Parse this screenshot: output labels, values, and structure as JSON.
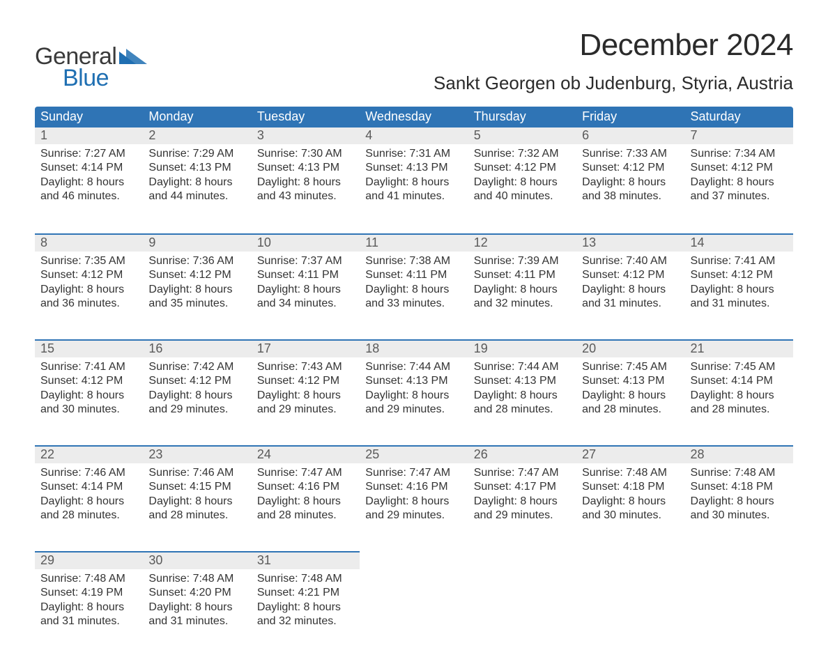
{
  "brand": {
    "part1": "General",
    "part2": "Blue",
    "accent_color": "#1f6fb2"
  },
  "title": "December 2024",
  "location": "Sankt Georgen ob Judenburg, Styria, Austria",
  "colors": {
    "header_bg": "#2f74b5",
    "header_text": "#ffffff",
    "rule": "#2f74b5",
    "daynum_bg": "#ececec",
    "daynum_text": "#5a5a5a",
    "body_text": "#333333",
    "page_bg": "#ffffff"
  },
  "fonts": {
    "title_size_pt": 33,
    "location_size_pt": 20,
    "header_size_pt": 14,
    "body_size_pt": 12
  },
  "weekday_labels": [
    "Sunday",
    "Monday",
    "Tuesday",
    "Wednesday",
    "Thursday",
    "Friday",
    "Saturday"
  ],
  "weeks": [
    [
      {
        "n": "1",
        "sunrise": "7:27 AM",
        "sunset": "4:14 PM",
        "daylight_l1": "Daylight: 8 hours",
        "daylight_l2": "and 46 minutes."
      },
      {
        "n": "2",
        "sunrise": "7:29 AM",
        "sunset": "4:13 PM",
        "daylight_l1": "Daylight: 8 hours",
        "daylight_l2": "and 44 minutes."
      },
      {
        "n": "3",
        "sunrise": "7:30 AM",
        "sunset": "4:13 PM",
        "daylight_l1": "Daylight: 8 hours",
        "daylight_l2": "and 43 minutes."
      },
      {
        "n": "4",
        "sunrise": "7:31 AM",
        "sunset": "4:13 PM",
        "daylight_l1": "Daylight: 8 hours",
        "daylight_l2": "and 41 minutes."
      },
      {
        "n": "5",
        "sunrise": "7:32 AM",
        "sunset": "4:12 PM",
        "daylight_l1": "Daylight: 8 hours",
        "daylight_l2": "and 40 minutes."
      },
      {
        "n": "6",
        "sunrise": "7:33 AM",
        "sunset": "4:12 PM",
        "daylight_l1": "Daylight: 8 hours",
        "daylight_l2": "and 38 minutes."
      },
      {
        "n": "7",
        "sunrise": "7:34 AM",
        "sunset": "4:12 PM",
        "daylight_l1": "Daylight: 8 hours",
        "daylight_l2": "and 37 minutes."
      }
    ],
    [
      {
        "n": "8",
        "sunrise": "7:35 AM",
        "sunset": "4:12 PM",
        "daylight_l1": "Daylight: 8 hours",
        "daylight_l2": "and 36 minutes."
      },
      {
        "n": "9",
        "sunrise": "7:36 AM",
        "sunset": "4:12 PM",
        "daylight_l1": "Daylight: 8 hours",
        "daylight_l2": "and 35 minutes."
      },
      {
        "n": "10",
        "sunrise": "7:37 AM",
        "sunset": "4:11 PM",
        "daylight_l1": "Daylight: 8 hours",
        "daylight_l2": "and 34 minutes."
      },
      {
        "n": "11",
        "sunrise": "7:38 AM",
        "sunset": "4:11 PM",
        "daylight_l1": "Daylight: 8 hours",
        "daylight_l2": "and 33 minutes."
      },
      {
        "n": "12",
        "sunrise": "7:39 AM",
        "sunset": "4:11 PM",
        "daylight_l1": "Daylight: 8 hours",
        "daylight_l2": "and 32 minutes."
      },
      {
        "n": "13",
        "sunrise": "7:40 AM",
        "sunset": "4:12 PM",
        "daylight_l1": "Daylight: 8 hours",
        "daylight_l2": "and 31 minutes."
      },
      {
        "n": "14",
        "sunrise": "7:41 AM",
        "sunset": "4:12 PM",
        "daylight_l1": "Daylight: 8 hours",
        "daylight_l2": "and 31 minutes."
      }
    ],
    [
      {
        "n": "15",
        "sunrise": "7:41 AM",
        "sunset": "4:12 PM",
        "daylight_l1": "Daylight: 8 hours",
        "daylight_l2": "and 30 minutes."
      },
      {
        "n": "16",
        "sunrise": "7:42 AM",
        "sunset": "4:12 PM",
        "daylight_l1": "Daylight: 8 hours",
        "daylight_l2": "and 29 minutes."
      },
      {
        "n": "17",
        "sunrise": "7:43 AM",
        "sunset": "4:12 PM",
        "daylight_l1": "Daylight: 8 hours",
        "daylight_l2": "and 29 minutes."
      },
      {
        "n": "18",
        "sunrise": "7:44 AM",
        "sunset": "4:13 PM",
        "daylight_l1": "Daylight: 8 hours",
        "daylight_l2": "and 29 minutes."
      },
      {
        "n": "19",
        "sunrise": "7:44 AM",
        "sunset": "4:13 PM",
        "daylight_l1": "Daylight: 8 hours",
        "daylight_l2": "and 28 minutes."
      },
      {
        "n": "20",
        "sunrise": "7:45 AM",
        "sunset": "4:13 PM",
        "daylight_l1": "Daylight: 8 hours",
        "daylight_l2": "and 28 minutes."
      },
      {
        "n": "21",
        "sunrise": "7:45 AM",
        "sunset": "4:14 PM",
        "daylight_l1": "Daylight: 8 hours",
        "daylight_l2": "and 28 minutes."
      }
    ],
    [
      {
        "n": "22",
        "sunrise": "7:46 AM",
        "sunset": "4:14 PM",
        "daylight_l1": "Daylight: 8 hours",
        "daylight_l2": "and 28 minutes."
      },
      {
        "n": "23",
        "sunrise": "7:46 AM",
        "sunset": "4:15 PM",
        "daylight_l1": "Daylight: 8 hours",
        "daylight_l2": "and 28 minutes."
      },
      {
        "n": "24",
        "sunrise": "7:47 AM",
        "sunset": "4:16 PM",
        "daylight_l1": "Daylight: 8 hours",
        "daylight_l2": "and 28 minutes."
      },
      {
        "n": "25",
        "sunrise": "7:47 AM",
        "sunset": "4:16 PM",
        "daylight_l1": "Daylight: 8 hours",
        "daylight_l2": "and 29 minutes."
      },
      {
        "n": "26",
        "sunrise": "7:47 AM",
        "sunset": "4:17 PM",
        "daylight_l1": "Daylight: 8 hours",
        "daylight_l2": "and 29 minutes."
      },
      {
        "n": "27",
        "sunrise": "7:48 AM",
        "sunset": "4:18 PM",
        "daylight_l1": "Daylight: 8 hours",
        "daylight_l2": "and 30 minutes."
      },
      {
        "n": "28",
        "sunrise": "7:48 AM",
        "sunset": "4:18 PM",
        "daylight_l1": "Daylight: 8 hours",
        "daylight_l2": "and 30 minutes."
      }
    ],
    [
      {
        "n": "29",
        "sunrise": "7:48 AM",
        "sunset": "4:19 PM",
        "daylight_l1": "Daylight: 8 hours",
        "daylight_l2": "and 31 minutes."
      },
      {
        "n": "30",
        "sunrise": "7:48 AM",
        "sunset": "4:20 PM",
        "daylight_l1": "Daylight: 8 hours",
        "daylight_l2": "and 31 minutes."
      },
      {
        "n": "31",
        "sunrise": "7:48 AM",
        "sunset": "4:21 PM",
        "daylight_l1": "Daylight: 8 hours",
        "daylight_l2": "and 32 minutes."
      },
      null,
      null,
      null,
      null
    ]
  ],
  "labels": {
    "sunrise_prefix": "Sunrise: ",
    "sunset_prefix": "Sunset: "
  }
}
